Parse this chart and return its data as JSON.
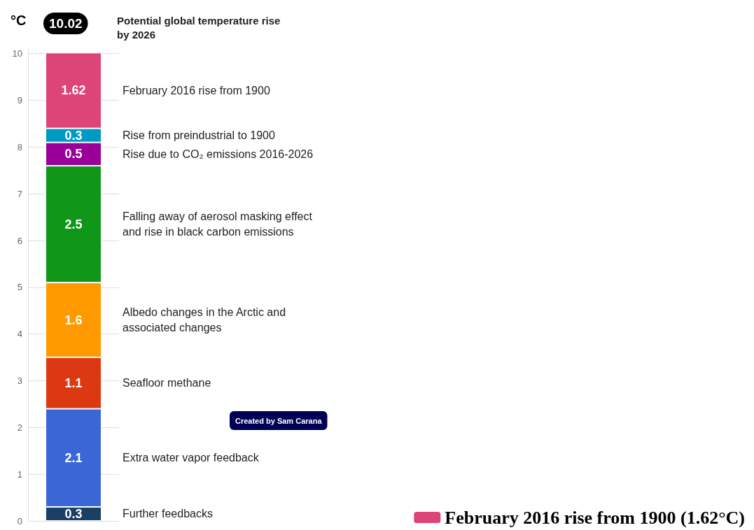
{
  "chart_data": {
    "type": "bar",
    "stacked": true,
    "title": "Potential global temperature rise\nby 2026",
    "ylabel": "°C",
    "categories": [
      null
    ],
    "series": [
      {
        "name": "Further feedbacks",
        "color": "#1c3f66",
        "values": [
          0.3
        ]
      },
      {
        "name": "Extra water vapor feedback",
        "color": "#3b66d6",
        "values": [
          2.1
        ]
      },
      {
        "name": "Seafloor methane",
        "color": "#dc3912",
        "values": [
          1.1
        ]
      },
      {
        "name": "Albedo changes in the Arctic and\nassociated changes",
        "color": "#ff9900",
        "values": [
          1.6
        ]
      },
      {
        "name": "Falling away of aerosol masking effect\nand rise in black carbon emissions",
        "color": "#109618",
        "values": [
          2.5
        ]
      },
      {
        "name": "Rise due to CO₂ emissions 2016-2026",
        "color": "#990099",
        "values": [
          0.5
        ]
      },
      {
        "name": "Rise from preindustrial to 1900",
        "color": "#0099c6",
        "values": [
          0.3
        ]
      },
      {
        "name": "February 2016 rise from 1900 (1.62°C)",
        "color": "#dd4477",
        "values": [
          1.62
        ]
      }
    ],
    "totals": [
      "10.02"
    ],
    "data_labels": true,
    "ylim": [
      0,
      10.1
    ],
    "yticks": [
      0,
      1,
      2,
      3,
      4,
      5,
      6,
      7,
      8,
      9,
      10
    ],
    "grid": "y",
    "legend": "bottom right",
    "annotations": [
      "Created by Sam Carana",
      "February 2016 rise from 1900"
    ]
  }
}
